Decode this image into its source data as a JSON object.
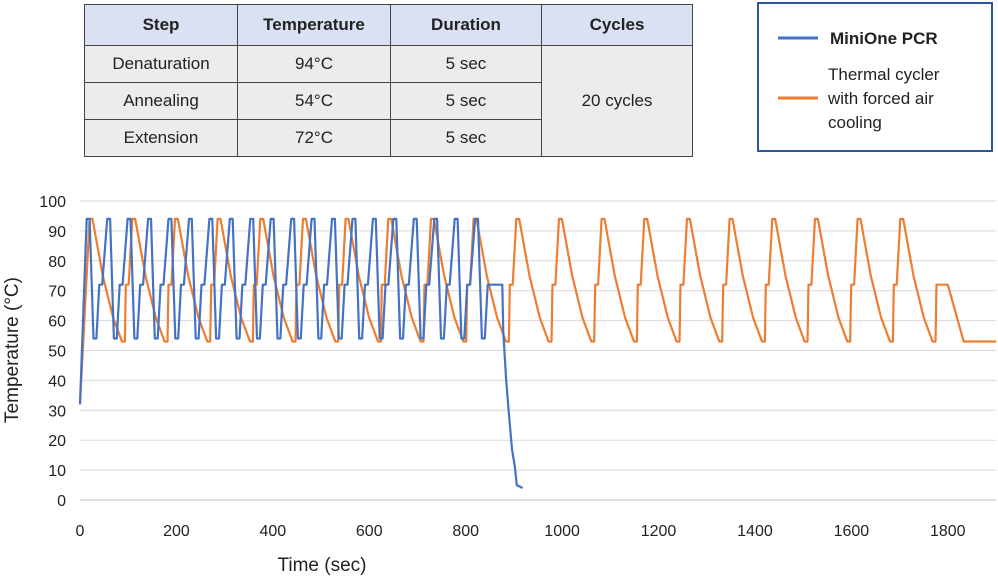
{
  "table": {
    "headers": [
      "Step",
      "Temperature",
      "Duration",
      "Cycles"
    ],
    "rows": [
      {
        "step": "Denaturation",
        "temperature": "94°C",
        "duration": "5 sec"
      },
      {
        "step": "Annealing",
        "temperature": "54°C",
        "duration": "5 sec"
      },
      {
        "step": "Extension",
        "temperature": "72°C",
        "duration": "5 sec"
      }
    ],
    "cycles": "20 cycles"
  },
  "legend": {
    "series1": "MiniOne PCR",
    "series2_lines": [
      "Thermal cycler",
      "with forced air",
      "cooling"
    ]
  },
  "colors": {
    "miniOne": "#4472c4",
    "thermal": "#ed7d31",
    "grid": "#d9d9d9",
    "tableHeader": "#d9e1f2",
    "tableCell": "#ececec",
    "legendBorder": "#2f5597"
  },
  "chart_data": {
    "type": "line",
    "title": "",
    "xlabel": "Time (sec)",
    "ylabel": "Temperature (°C)",
    "xlim": [
      0,
      1900
    ],
    "ylim": [
      0,
      100
    ],
    "xticks": [
      0,
      200,
      400,
      600,
      800,
      1000,
      1200,
      1400,
      1600,
      1800
    ],
    "yticks": [
      0,
      10,
      20,
      30,
      40,
      50,
      60,
      70,
      80,
      90,
      100
    ],
    "grid": true,
    "legend_position": "top-right",
    "series": [
      {
        "name": "MiniOne PCR",
        "color": "#4472c4",
        "start": 32,
        "initial_rise_end_time": 14,
        "cycle_count": 20,
        "cycle_period": 42.4,
        "first_cycle_time": 14,
        "denature_temp": 94,
        "anneal_temp": 54,
        "extend_temp": 72,
        "final_extension_time": 862,
        "cooldown": [
          [
            876,
            72
          ],
          [
            878,
            56
          ],
          [
            884,
            40
          ],
          [
            890,
            28
          ],
          [
            896,
            17
          ],
          [
            902,
            11
          ],
          [
            906,
            5
          ],
          [
            918,
            4
          ]
        ]
      },
      {
        "name": "Thermal cycler with forced air cooling",
        "color": "#ed7d31",
        "start": 32,
        "initial_rise_end_time": 20,
        "cycle_count": 20,
        "cycle_period": 88.5,
        "first_cycle_time": 20,
        "denature_temp": 94,
        "anneal_temp": 53,
        "extend_temp": 72,
        "final_extension_time": 1800,
        "tail": [
          [
            1833,
            53
          ],
          [
            1900,
            53
          ]
        ]
      }
    ]
  }
}
